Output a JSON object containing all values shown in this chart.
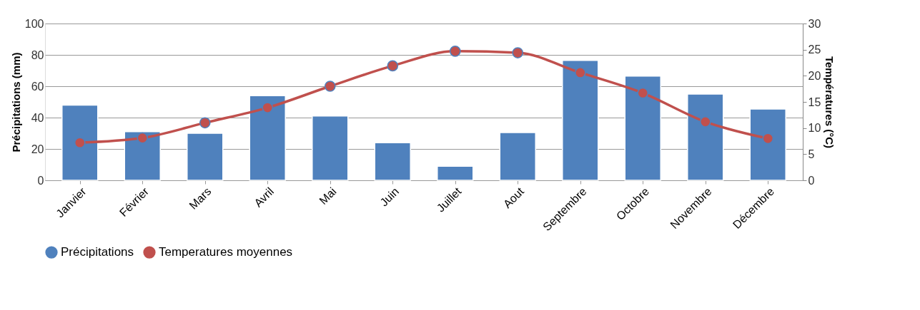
{
  "chart_data": {
    "type": "bar",
    "categories": [
      "Janvier",
      "Février",
      "Mars",
      "Avril",
      "Mai",
      "Juin",
      "Juillet",
      "Aout",
      "Septembre",
      "Octobre",
      "Novembre",
      "Décembre"
    ],
    "series": [
      {
        "name": "Précipitations",
        "color": "#4f81bd",
        "values": [
          48,
          31,
          30,
          54,
          41,
          24,
          9,
          30.5,
          76.5,
          66.5,
          55,
          45.5
        ]
      },
      {
        "name": "Temperatures moyennes",
        "type": "line",
        "axis": "y2",
        "color": "#c0504d",
        "marker": "circle",
        "values": [
          7.2,
          8.1,
          11,
          13.9,
          18,
          21.9,
          24.7,
          24.4,
          20.6,
          16.7,
          11.2,
          8
        ]
      }
    ],
    "ylabel": "Précipitations (mm)",
    "y2label": "Températures (°C)",
    "ylim": [
      0,
      100
    ],
    "yticks": [
      0,
      20,
      40,
      60,
      80,
      100
    ],
    "y2lim": [
      0,
      30
    ],
    "y2ticks": [
      0,
      5,
      10,
      15,
      20,
      25,
      30
    ],
    "grid": "y",
    "legend": "bottom"
  }
}
